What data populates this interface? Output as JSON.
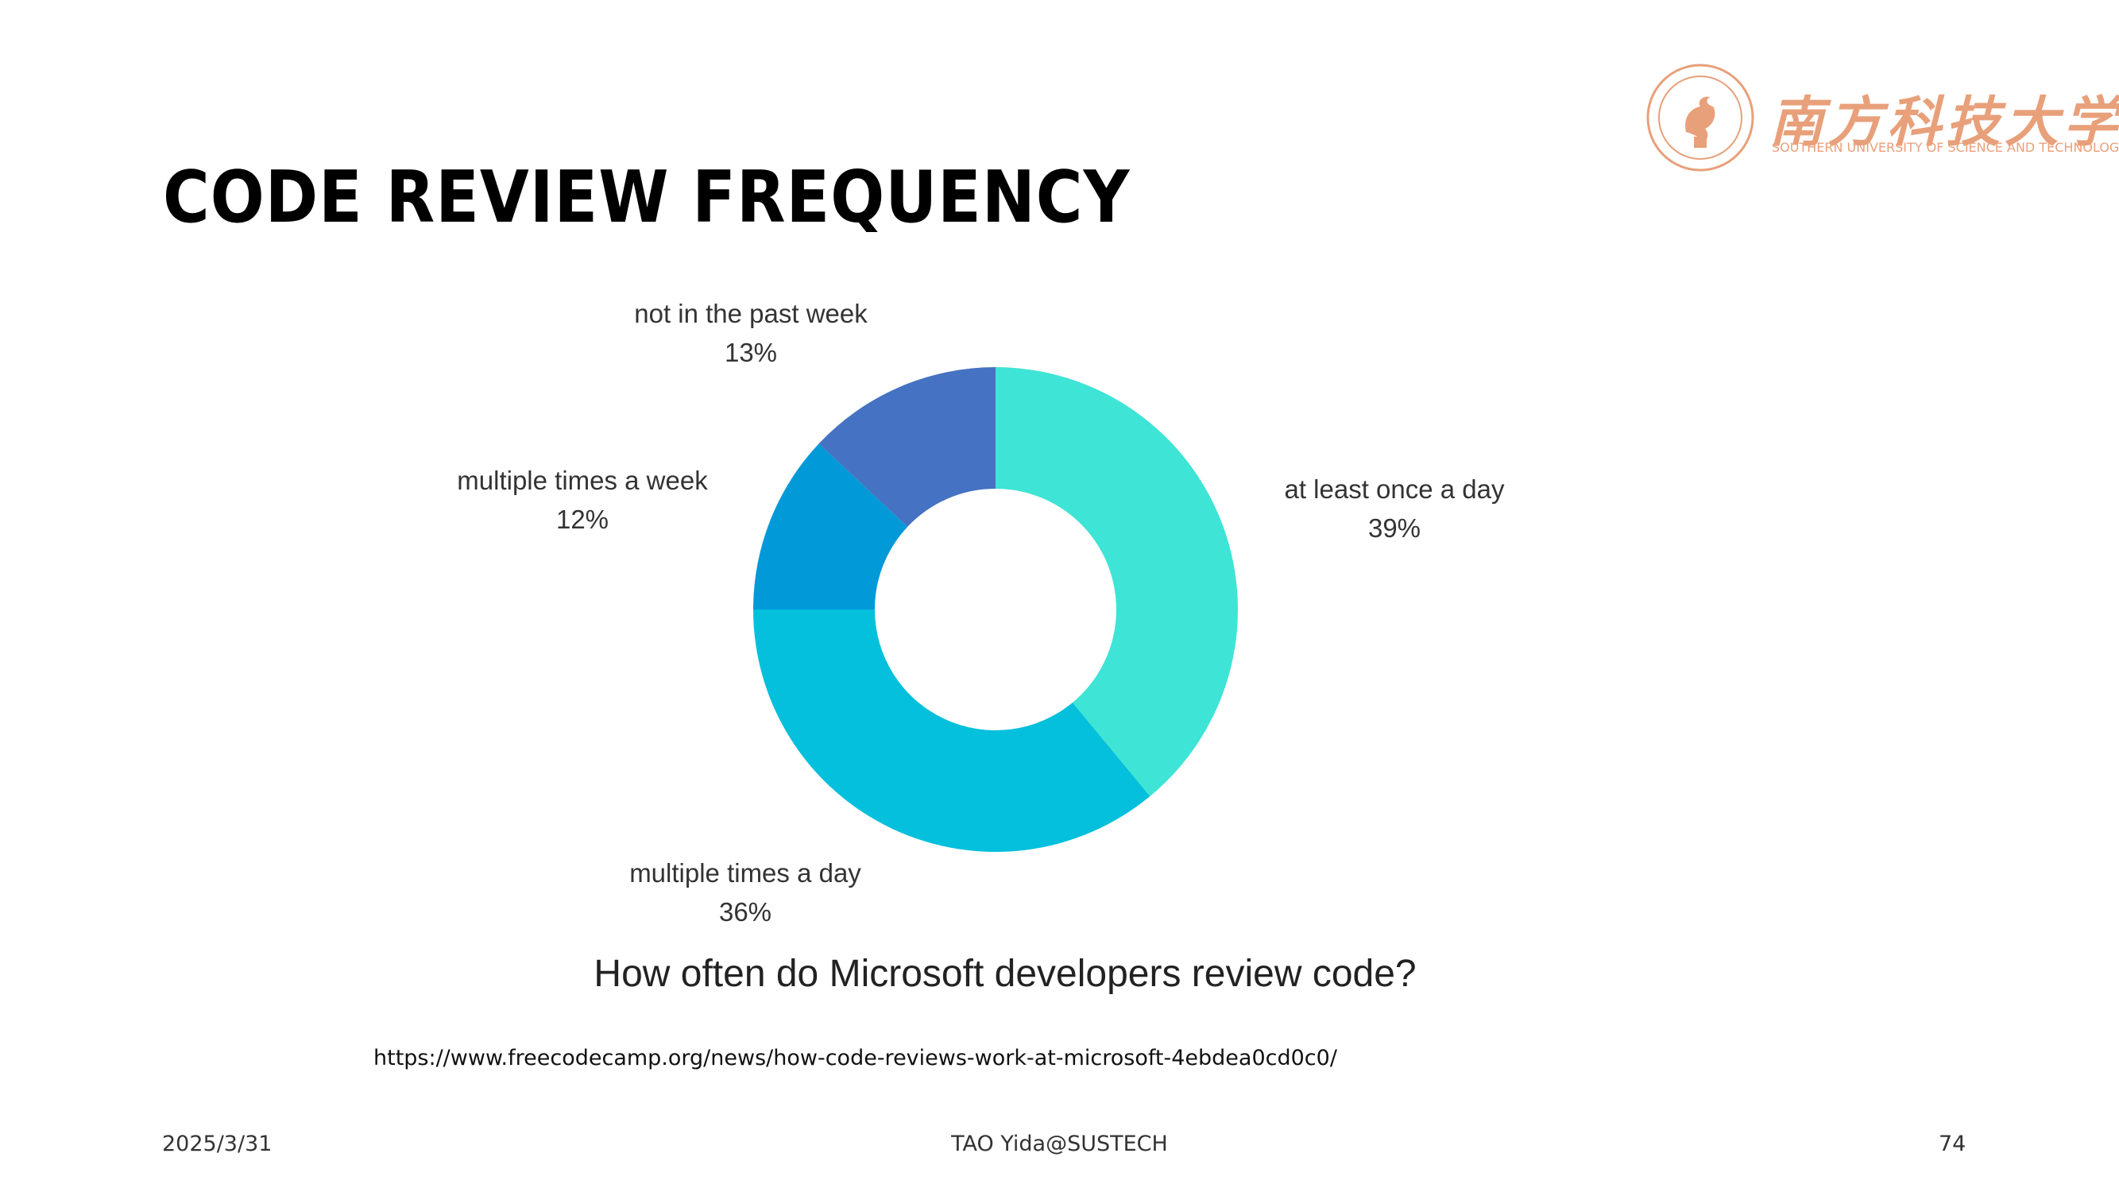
{
  "slide": {
    "title": "Code Review Frequency",
    "source_url": "https://www.freecodecamp.org/news/how-code-reviews-work-at-microsoft-4ebdea0cd0c0/",
    "footer_date": "2025/3/31",
    "footer_author": "TAO Yida@SUSTECH",
    "page_number": "74"
  },
  "logo": {
    "name_cn": "南方科技大学",
    "name_en": "SOUTHERN UNIVERSITY OF SCIENCE AND TECHNOLOGY",
    "color": "#e8a07a"
  },
  "chart_data": {
    "type": "pie",
    "donut": true,
    "title": "How often do Microsoft developers review code?",
    "labels": [
      "at least once a day",
      "multiple times a day",
      "multiple times a week",
      "not in the past week"
    ],
    "values": [
      39,
      36,
      12,
      13
    ],
    "value_labels": [
      "39%",
      "36%",
      "12%",
      "13%"
    ],
    "colors": [
      "#3ee4d5",
      "#04c0dc",
      "#0299d9",
      "#4572c2"
    ],
    "start_angle_deg": 0,
    "direction": "clockwise"
  }
}
